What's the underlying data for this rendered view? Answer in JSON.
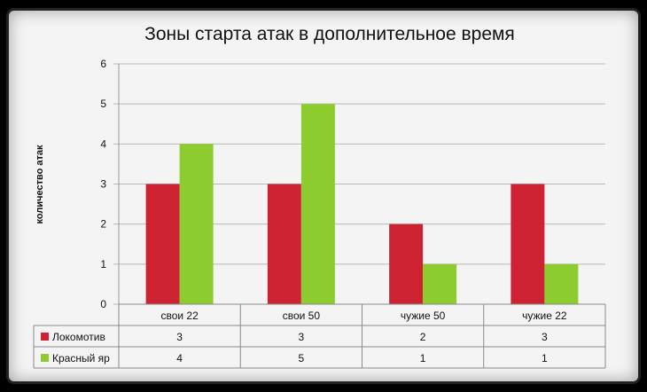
{
  "chart_data": {
    "type": "bar",
    "title": "Зоны старта атак в дополнительное время",
    "ylabel": "количество атак",
    "xlabel": "",
    "ylim": [
      0,
      6
    ],
    "yticks": [
      "0",
      "1",
      "2",
      "3",
      "4",
      "5",
      "6"
    ],
    "grid": true,
    "categories": [
      "свои 22",
      "свои 50",
      "чужие 50",
      "чужие 22"
    ],
    "series": [
      {
        "name": "Локомотив",
        "color": "#cc2232",
        "values": [
          3,
          3,
          2,
          3
        ]
      },
      {
        "name": "Красный яр",
        "color": "#8ccc2e",
        "values": [
          4,
          5,
          1,
          1
        ]
      }
    ],
    "legend": "data-table"
  }
}
